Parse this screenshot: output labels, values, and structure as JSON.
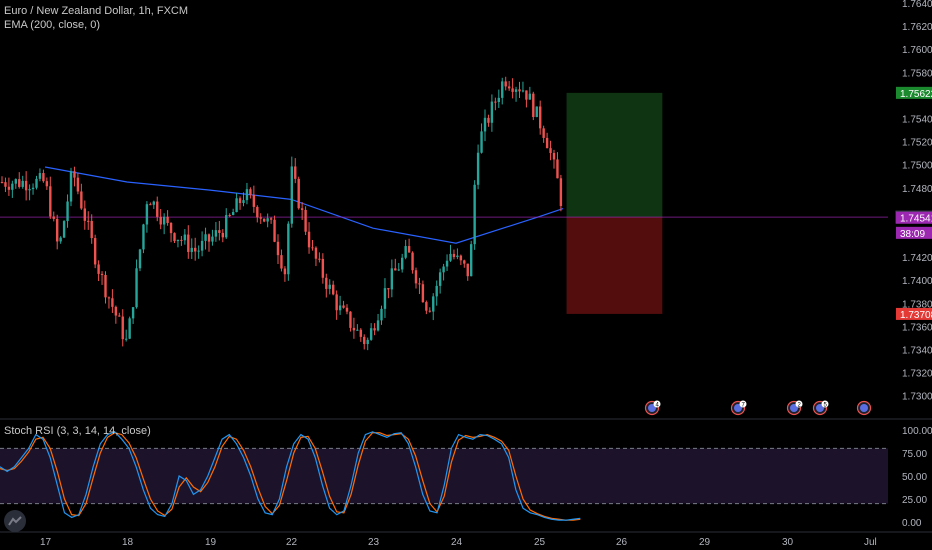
{
  "header": {
    "symbol_title": "Euro / New Zealand Dollar, 1h, FXCM",
    "ema_label": "EMA (200, close, 0)"
  },
  "rsi_panel": {
    "label": "Stoch RSI (3, 3, 14, 14, close)"
  },
  "colors": {
    "background": "#000000",
    "bull_candle": "#26a69a",
    "bear_candle": "#ef5350",
    "ema_line": "#2962ff",
    "rsi_k": "#2196f3",
    "rsi_d": "#ff6d00",
    "rsi_band": "#7e57c2",
    "profit_zone": "#1b5e20",
    "loss_zone": "#b71c1c",
    "current_price_line": "#9c27b0"
  },
  "chart_data": [
    {
      "type": "candlestick",
      "title": "Euro / New Zealand Dollar, 1h, FXCM",
      "x_tick_labels": [
        "17",
        "18",
        "19",
        "22",
        "23",
        "24",
        "25",
        "26",
        "29",
        "30",
        "Jul"
      ],
      "y_tick_labels": [
        "1.76400",
        "1.76200",
        "1.76000",
        "1.75800",
        "1.75400",
        "1.75200",
        "1.75000",
        "1.74800",
        "1.74200",
        "1.74000",
        "1.73800",
        "1.73600",
        "1.73400",
        "1.73200",
        "1.73000"
      ],
      "ylim": [
        1.729,
        1.7655
      ],
      "series_trend_points": [
        {
          "x": "17 00:00",
          "y": 1.7485
        },
        {
          "x": "17 04:00",
          "y": 1.7425
        },
        {
          "x": "17 08:00",
          "y": 1.7495
        },
        {
          "x": "17 16:00",
          "y": 1.7405
        },
        {
          "x": "18 00:00",
          "y": 1.7345
        },
        {
          "x": "18 06:00",
          "y": 1.7475
        },
        {
          "x": "18 12:00",
          "y": 1.7445
        },
        {
          "x": "18 20:00",
          "y": 1.7425
        },
        {
          "x": "19 04:00",
          "y": 1.7445
        },
        {
          "x": "19 10:00",
          "y": 1.7475
        },
        {
          "x": "19 18:00",
          "y": 1.7445
        },
        {
          "x": "19 22:00",
          "y": 1.7405
        },
        {
          "x": "22 00:00",
          "y": 1.7495
        },
        {
          "x": "22 06:00",
          "y": 1.7425
        },
        {
          "x": "22 14:00",
          "y": 1.7375
        },
        {
          "x": "22 22:00",
          "y": 1.7345
        },
        {
          "x": "23 04:00",
          "y": 1.7395
        },
        {
          "x": "23 10:00",
          "y": 1.7425
        },
        {
          "x": "23 16:00",
          "y": 1.7375
        },
        {
          "x": "23 22:00",
          "y": 1.7425
        },
        {
          "x": "24 04:00",
          "y": 1.7405
        },
        {
          "x": "24 06:00",
          "y": 1.7515
        },
        {
          "x": "24 14:00",
          "y": 1.7575
        },
        {
          "x": "24 20:00",
          "y": 1.7565
        },
        {
          "x": "25 02:00",
          "y": 1.7525
        },
        {
          "x": "25 06:00",
          "y": 1.7478
        },
        {
          "x": "25 07:00",
          "y": 1.7456
        }
      ],
      "ema_200": [
        {
          "x": "17 00:00",
          "y": 1.7498
        },
        {
          "x": "18 00:00",
          "y": 1.7485
        },
        {
          "x": "19 00:00",
          "y": 1.7478
        },
        {
          "x": "22 00:00",
          "y": 1.747
        },
        {
          "x": "23 00:00",
          "y": 1.7445
        },
        {
          "x": "24 00:00",
          "y": 1.7432
        },
        {
          "x": "25 00:00",
          "y": 1.7455
        },
        {
          "x": "25 07:00",
          "y": 1.7462
        }
      ],
      "position": {
        "entry": 1.74546,
        "target": 1.75622,
        "stop": 1.73708,
        "start_x": "25 08:00",
        "end_x": "26 12:00"
      },
      "price_labels": [
        {
          "text": "1.75622",
          "value": 1.75622,
          "color": "#1b8a2e"
        },
        {
          "text": "1.74546",
          "value": 1.74546,
          "color": "#131722"
        },
        {
          "text": "1.74541",
          "value": 1.74541,
          "color": "#9c27b0"
        },
        {
          "text": "38:09",
          "value": 1.7441,
          "color": "#9c27b0"
        },
        {
          "text": "1.73708",
          "value": 1.73708,
          "color": "#e53935"
        }
      ],
      "events": [
        {
          "x": "25",
          "count": "4"
        },
        {
          "x": "29",
          "count": "7"
        },
        {
          "x": "30",
          "count": "2"
        },
        {
          "x": "30b",
          "count": "5"
        },
        {
          "x": "Jul",
          "count": ""
        }
      ]
    },
    {
      "type": "line",
      "title": "Stoch RSI (3, 3, 14, 14, close)",
      "y_tick_labels": [
        "100.00",
        "75.00",
        "50.00",
        "25.00",
        "0.00"
      ],
      "ylim": [
        0,
        100
      ],
      "band": [
        20,
        80
      ],
      "k_points": [
        60,
        55,
        60,
        70,
        80,
        95,
        90,
        70,
        40,
        10,
        5,
        8,
        30,
        60,
        85,
        95,
        98,
        90,
        80,
        60,
        35,
        15,
        8,
        6,
        20,
        50,
        45,
        30,
        35,
        50,
        70,
        90,
        95,
        85,
        70,
        50,
        25,
        10,
        8,
        25,
        60,
        85,
        95,
        90,
        70,
        40,
        15,
        8,
        12,
        40,
        75,
        95,
        98,
        95,
        92,
        96,
        97,
        85,
        60,
        30,
        12,
        10,
        40,
        80,
        95,
        92,
        90,
        95,
        94,
        90,
        85,
        70,
        35,
        15,
        10,
        8,
        5,
        3,
        2,
        2,
        3,
        4
      ],
      "d_points": [
        58,
        56,
        58,
        66,
        76,
        90,
        92,
        80,
        55,
        25,
        8,
        7,
        20,
        48,
        75,
        92,
        97,
        95,
        86,
        70,
        47,
        25,
        12,
        7,
        14,
        38,
        48,
        38,
        33,
        43,
        60,
        82,
        93,
        90,
        78,
        60,
        37,
        17,
        9,
        18,
        45,
        75,
        92,
        93,
        80,
        55,
        28,
        11,
        10,
        30,
        62,
        88,
        97,
        97,
        94,
        95,
        96,
        90,
        72,
        45,
        20,
        11,
        28,
        65,
        89,
        94,
        92,
        93,
        95,
        92,
        88,
        78,
        50,
        25,
        13,
        9,
        6,
        4,
        3,
        2,
        2,
        3
      ]
    }
  ]
}
